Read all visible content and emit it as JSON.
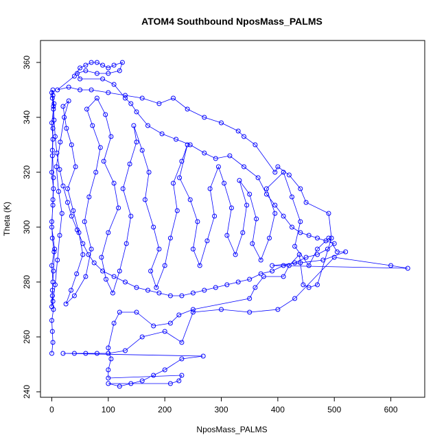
{
  "chart_data": {
    "type": "scatter",
    "title": "ATOM4 Southbound NposMass_PALMS",
    "xlabel": "NposMass_PALMS",
    "ylabel": "Theta (K)",
    "xlim": [
      -20,
      660
    ],
    "ylim": [
      238,
      368
    ],
    "xticks": [
      0,
      100,
      200,
      300,
      400,
      500,
      600
    ],
    "yticks": [
      240,
      260,
      280,
      300,
      320,
      340,
      360
    ],
    "grid": false,
    "legend": "none",
    "series_color": "#0000ff",
    "marker": "open-circle",
    "connected": true,
    "series": [
      {
        "points": [
          [
            0,
            254
          ],
          [
            2,
            258
          ],
          [
            1,
            262
          ],
          [
            0,
            266
          ],
          [
            3,
            270
          ],
          [
            1,
            275
          ],
          [
            2,
            280
          ],
          [
            0,
            286
          ],
          [
            4,
            291
          ],
          [
            1,
            296
          ],
          [
            0,
            302
          ],
          [
            2,
            308
          ],
          [
            3,
            314
          ],
          [
            0,
            320
          ],
          [
            1,
            326
          ],
          [
            2,
            332
          ],
          [
            0,
            338
          ],
          [
            3,
            343
          ],
          [
            1,
            347
          ],
          [
            2,
            350
          ],
          [
            0,
            349
          ],
          [
            4,
            345
          ],
          [
            2,
            336
          ],
          [
            1,
            328
          ],
          [
            3,
            318
          ],
          [
            2,
            310
          ],
          [
            0,
            300
          ],
          [
            5,
            292
          ],
          [
            3,
            284
          ],
          [
            1,
            277
          ],
          [
            0,
            271
          ],
          [
            2,
            273
          ],
          [
            6,
            279
          ],
          [
            10,
            288
          ],
          [
            14,
            297
          ],
          [
            18,
            305
          ],
          [
            12,
            313
          ],
          [
            8,
            322
          ],
          [
            15,
            331
          ],
          [
            22,
            340
          ],
          [
            30,
            346
          ],
          [
            20,
            344
          ],
          [
            26,
            336
          ],
          [
            35,
            330
          ],
          [
            42,
            322
          ],
          [
            28,
            314
          ],
          [
            38,
            306
          ],
          [
            48,
            298
          ],
          [
            55,
            290
          ],
          [
            44,
            283
          ],
          [
            34,
            277
          ],
          [
            25,
            272
          ],
          [
            40,
            275
          ],
          [
            60,
            282
          ],
          [
            70,
            292
          ],
          [
            58,
            302
          ],
          [
            66,
            311
          ],
          [
            78,
            320
          ],
          [
            86,
            329
          ],
          [
            72,
            337
          ],
          [
            62,
            343
          ],
          [
            80,
            347
          ],
          [
            95,
            341
          ],
          [
            105,
            333
          ],
          [
            92,
            324
          ],
          [
            110,
            316
          ],
          [
            118,
            307
          ],
          [
            100,
            298
          ],
          [
            88,
            289
          ],
          [
            96,
            281
          ],
          [
            108,
            276
          ],
          [
            120,
            284
          ],
          [
            132,
            294
          ],
          [
            140,
            304
          ],
          [
            126,
            314
          ],
          [
            138,
            323
          ],
          [
            150,
            331
          ],
          [
            145,
            337
          ],
          [
            160,
            328
          ],
          [
            172,
            320
          ],
          [
            165,
            310
          ],
          [
            180,
            300
          ],
          [
            190,
            292
          ],
          [
            175,
            284
          ],
          [
            185,
            278
          ],
          [
            200,
            286
          ],
          [
            210,
            296
          ],
          [
            222,
            306
          ],
          [
            215,
            316
          ],
          [
            230,
            324
          ],
          [
            240,
            330
          ],
          [
            226,
            318
          ],
          [
            245,
            310
          ],
          [
            258,
            302
          ],
          [
            250,
            292
          ],
          [
            262,
            286
          ],
          [
            275,
            295
          ],
          [
            288,
            304
          ],
          [
            280,
            314
          ],
          [
            295,
            322
          ],
          [
            305,
            316
          ],
          [
            318,
            307
          ],
          [
            310,
            297
          ],
          [
            325,
            290
          ],
          [
            338,
            298
          ],
          [
            345,
            308
          ],
          [
            332,
            317
          ],
          [
            350,
            312
          ],
          [
            362,
            303
          ],
          [
            355,
            294
          ],
          [
            370,
            288
          ],
          [
            385,
            296
          ],
          [
            395,
            305
          ],
          [
            380,
            314
          ],
          [
            410,
            320
          ],
          [
            425,
            311
          ],
          [
            440,
            302
          ],
          [
            430,
            293
          ],
          [
            455,
            286
          ],
          [
            470,
            292
          ],
          [
            490,
            296
          ],
          [
            505,
            291
          ],
          [
            520,
            291
          ],
          [
            480,
            288
          ],
          [
            440,
            287
          ],
          [
            390,
            286
          ],
          [
            630,
            285
          ],
          [
            600,
            286
          ],
          [
            500,
            289
          ],
          [
            430,
            274
          ],
          [
            400,
            270
          ],
          [
            350,
            269
          ],
          [
            300,
            270
          ],
          [
            250,
            269
          ],
          [
            230,
            258
          ],
          [
            200,
            262
          ],
          [
            160,
            260
          ],
          [
            130,
            255
          ],
          [
            100,
            254
          ],
          [
            80,
            254
          ],
          [
            60,
            254
          ],
          [
            40,
            254
          ],
          [
            20,
            254
          ],
          [
            268,
            253
          ],
          [
            230,
            252
          ],
          [
            200,
            248
          ],
          [
            180,
            246
          ],
          [
            160,
            244
          ],
          [
            140,
            243
          ],
          [
            120,
            242
          ],
          [
            100,
            243
          ],
          [
            210,
            243
          ],
          [
            225,
            244
          ],
          [
            230,
            246
          ],
          [
            100,
            245
          ],
          [
            100,
            248
          ],
          [
            105,
            252
          ],
          [
            100,
            256
          ],
          [
            110,
            265
          ],
          [
            120,
            269
          ],
          [
            150,
            269
          ],
          [
            180,
            264
          ],
          [
            210,
            265
          ],
          [
            225,
            268
          ],
          [
            250,
            270
          ],
          [
            350,
            274
          ],
          [
            360,
            278
          ],
          [
            375,
            282
          ],
          [
            410,
            282
          ],
          [
            420,
            286
          ],
          [
            438,
            290
          ],
          [
            445,
            279
          ],
          [
            455,
            278
          ],
          [
            470,
            279
          ],
          [
            495,
            296
          ],
          [
            490,
            305
          ],
          [
            450,
            309
          ],
          [
            440,
            314
          ],
          [
            420,
            319
          ],
          [
            400,
            322
          ],
          [
            395,
            320
          ],
          [
            360,
            330
          ],
          [
            340,
            333
          ],
          [
            330,
            335
          ],
          [
            300,
            338
          ],
          [
            270,
            340
          ],
          [
            240,
            343
          ],
          [
            215,
            347
          ],
          [
            190,
            345
          ],
          [
            160,
            347
          ],
          [
            130,
            348
          ],
          [
            100,
            349
          ],
          [
            70,
            350
          ],
          [
            50,
            350
          ],
          [
            30,
            351
          ],
          [
            10,
            350
          ],
          [
            40,
            355
          ],
          [
            50,
            358
          ],
          [
            60,
            359
          ],
          [
            70,
            360
          ],
          [
            80,
            360
          ],
          [
            90,
            359
          ],
          [
            100,
            358
          ],
          [
            110,
            359
          ],
          [
            125,
            360
          ],
          [
            120,
            357
          ],
          [
            100,
            356
          ],
          [
            80,
            356
          ],
          [
            60,
            357
          ],
          [
            45,
            356
          ],
          [
            50,
            354
          ],
          [
            90,
            354
          ],
          [
            110,
            352
          ],
          [
            130,
            347
          ],
          [
            140,
            345
          ],
          [
            150,
            342
          ],
          [
            170,
            337
          ],
          [
            195,
            334
          ],
          [
            220,
            332
          ],
          [
            245,
            330
          ],
          [
            270,
            327
          ],
          [
            290,
            325
          ],
          [
            315,
            326
          ],
          [
            340,
            322
          ],
          [
            365,
            318
          ],
          [
            380,
            312
          ],
          [
            395,
            308
          ],
          [
            410,
            304
          ],
          [
            425,
            300
          ],
          [
            440,
            298
          ],
          [
            455,
            297
          ],
          [
            470,
            296
          ],
          [
            485,
            295
          ],
          [
            500,
            294
          ],
          [
            488,
            292
          ],
          [
            470,
            290
          ],
          [
            450,
            289
          ],
          [
            430,
            287
          ],
          [
            410,
            286
          ],
          [
            390,
            284
          ],
          [
            370,
            283
          ],
          [
            350,
            281
          ],
          [
            330,
            280
          ],
          [
            310,
            279
          ],
          [
            290,
            278
          ],
          [
            270,
            277
          ],
          [
            250,
            276
          ],
          [
            230,
            275
          ],
          [
            210,
            275
          ],
          [
            190,
            276
          ],
          [
            170,
            277
          ],
          [
            150,
            278
          ],
          [
            130,
            280
          ],
          [
            110,
            282
          ],
          [
            90,
            284
          ],
          [
            75,
            287
          ],
          [
            65,
            290
          ],
          [
            55,
            294
          ],
          [
            45,
            299
          ],
          [
            35,
            304
          ],
          [
            28,
            309
          ],
          [
            20,
            315
          ],
          [
            14,
            321
          ],
          [
            9,
            327
          ],
          [
            6,
            333
          ],
          [
            4,
            339
          ],
          [
            3,
            344
          ],
          [
            2,
            348
          ]
        ]
      }
    ]
  }
}
